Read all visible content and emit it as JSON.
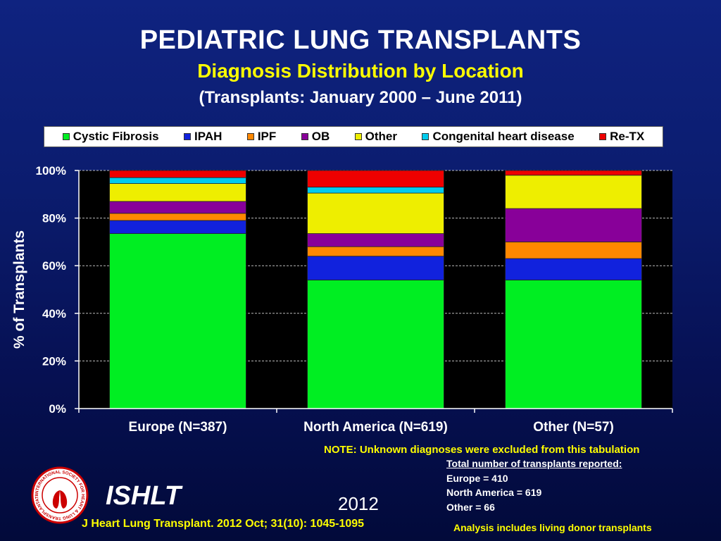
{
  "titles": {
    "main": "PEDIATRIC LUNG TRANSPLANTS",
    "sub": "Diagnosis Distribution by Location",
    "period": "(Transplants: January 2000 – June 2011)"
  },
  "colors": {
    "Cystic Fibrosis": "#00ee22",
    "IPAH": "#1122dd",
    "IPF": "#ff8800",
    "OB": "#880099",
    "Other": "#eeee00",
    "Congenital heart disease": "#00ccee",
    "Re-TX": "#ee0000"
  },
  "chart_data": {
    "type": "bar",
    "stacked": true,
    "categories": [
      "Europe (N=387)",
      "North America (N=619)",
      "Other (N=57)"
    ],
    "series": [
      {
        "name": "Cystic Fibrosis",
        "values": [
          73.5,
          54,
          54
        ]
      },
      {
        "name": "IPAH",
        "values": [
          5.5,
          10,
          9
        ]
      },
      {
        "name": "IPF",
        "values": [
          3,
          4,
          7
        ]
      },
      {
        "name": "OB",
        "values": [
          5,
          5.5,
          14
        ]
      },
      {
        "name": "Other",
        "values": [
          7.5,
          17,
          14
        ]
      },
      {
        "name": "Congenital heart disease",
        "values": [
          2.5,
          2.5,
          0
        ]
      },
      {
        "name": "Re-TX",
        "values": [
          3,
          7,
          2
        ]
      }
    ],
    "ylabel": "% of Transplants",
    "xlabel": "",
    "ylim": [
      0,
      100
    ],
    "yticks": [
      "0%",
      "20%",
      "40%",
      "60%",
      "80%",
      "100%"
    ],
    "grid": true,
    "legend_position": "top"
  },
  "note": "NOTE: Unknown diagnoses were excluded from this tabulation",
  "totals": {
    "title": "Total number of transplants reported:",
    "lines": [
      "Europe = 410",
      "North America = 619",
      "Other = 66"
    ]
  },
  "org": "ISHLT",
  "logo_text": "INTERNATIONAL SOCIETY FOR HEART & LUNG TRANSPLANTATION",
  "year": "2012",
  "citation": "J Heart Lung Transplant.  2012 Oct; 31(10): 1045-1095",
  "footnote": "Analysis includes living donor transplants"
}
